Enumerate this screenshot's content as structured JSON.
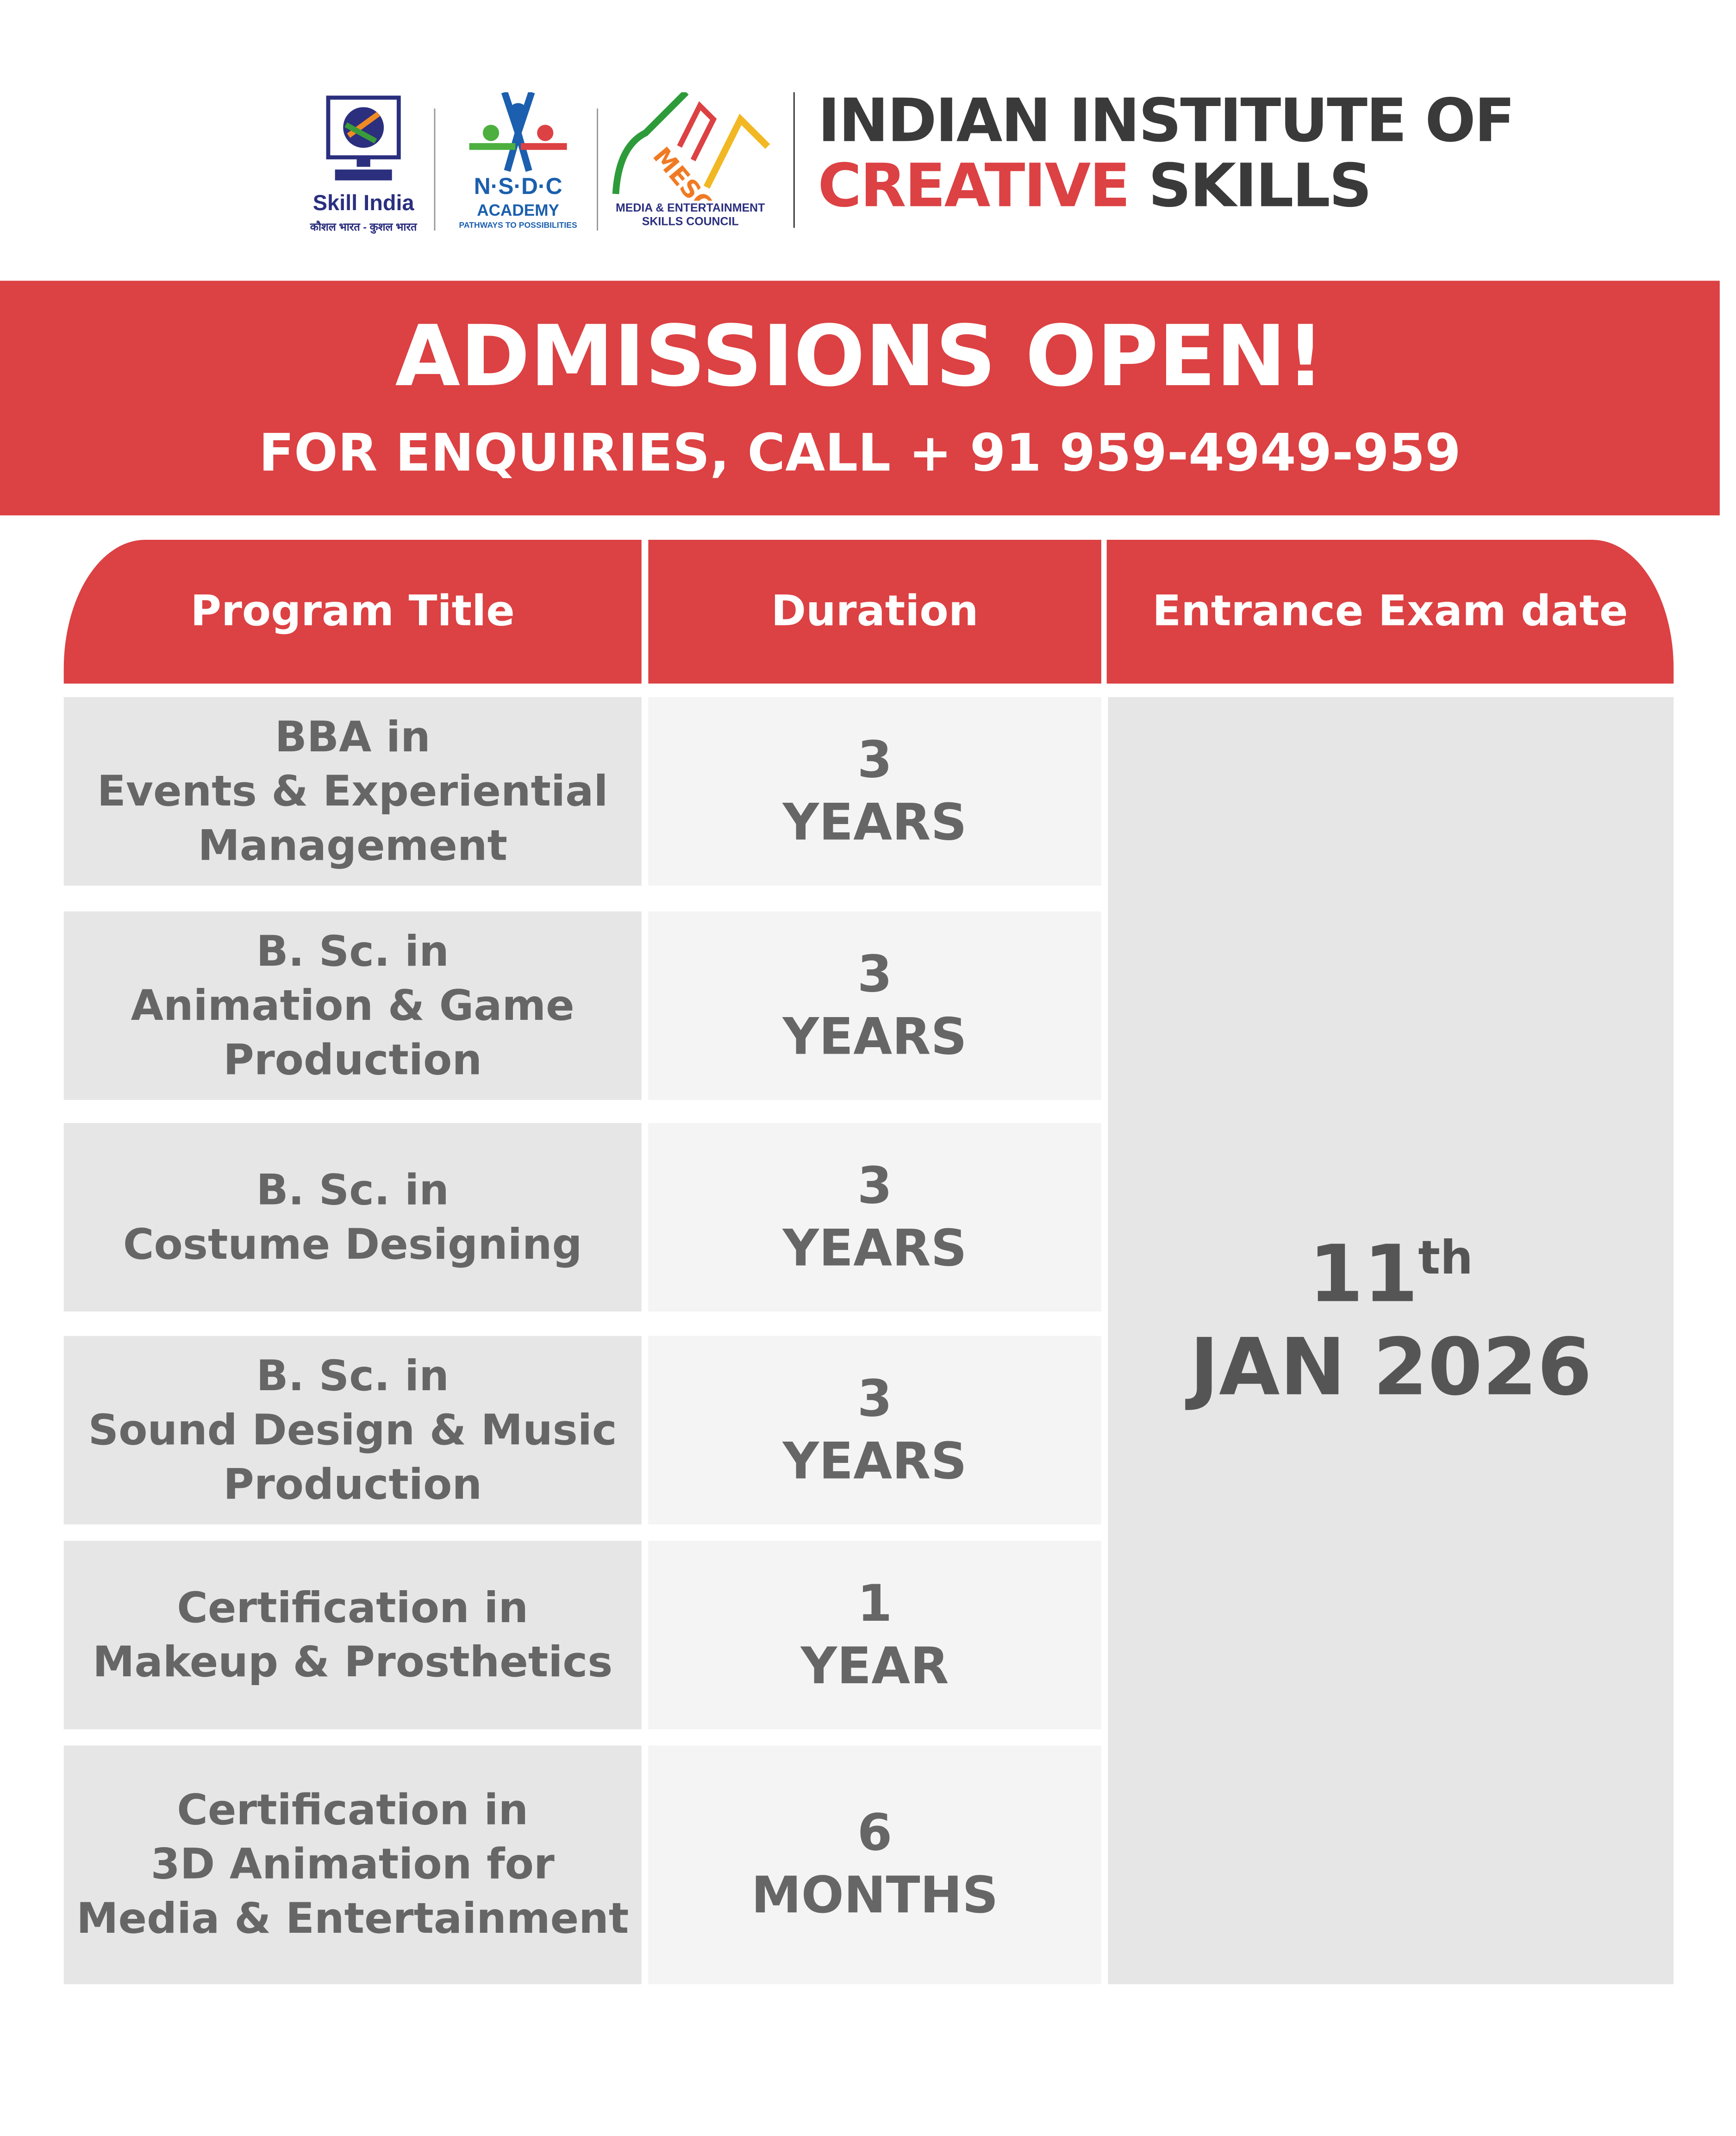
{
  "logos": {
    "skill_india": {
      "name": "Skill India",
      "tagline": "कौशल भारत - कुशल भारत"
    },
    "nsdc": {
      "name": "N·S·D·C",
      "sub": "ACADEMY",
      "tagline": "PATHWAYS TO POSSIBILITIES"
    },
    "mesc": {
      "name": "MESC",
      "full_line1": "MEDIA & ENTERTAINMENT",
      "full_line2": "SKILLS COUNCIL"
    }
  },
  "institute": {
    "line1": "INDIAN INSTITUTE OF",
    "line2_red": "CREATIVE",
    "line2_dark": "SKILLS"
  },
  "banner": {
    "title": "ADMISSIONS OPEN!",
    "subtitle": "FOR ENQUIRIES, CALL + 91 959-4949-959"
  },
  "table": {
    "headers": [
      "Program Title",
      "Duration",
      "Entrance Exam date"
    ],
    "rows": [
      {
        "title": [
          "BBA in",
          "Events & Experiential",
          "Management"
        ],
        "duration": [
          "3",
          "YEARS"
        ]
      },
      {
        "title": [
          "B. Sc. in",
          "Animation & Game",
          "Production"
        ],
        "duration": [
          "3",
          "YEARS"
        ]
      },
      {
        "title": [
          "B. Sc. in",
          "Costume Designing"
        ],
        "duration": [
          "3",
          "YEARS"
        ]
      },
      {
        "title": [
          "B. Sc. in",
          "Sound Design & Music",
          "Production"
        ],
        "duration": [
          "3",
          "YEARS"
        ]
      },
      {
        "title": [
          "Certification in",
          "Makeup & Prosthetics"
        ],
        "duration": [
          "1",
          "YEAR"
        ]
      },
      {
        "title": [
          "Certification in",
          "3D Animation for",
          "Media & Entertainment"
        ],
        "duration": [
          "6",
          "MONTHS"
        ]
      }
    ],
    "exam_date": {
      "day": "11",
      "suffix": "th",
      "month_year": "JAN 2026"
    }
  },
  "colors": {
    "accent": "#dc4143",
    "text": "#666666",
    "cell_dark": "#e6e6e6",
    "cell_light": "#f4f4f4",
    "dark_text": "#3a3a3a"
  }
}
